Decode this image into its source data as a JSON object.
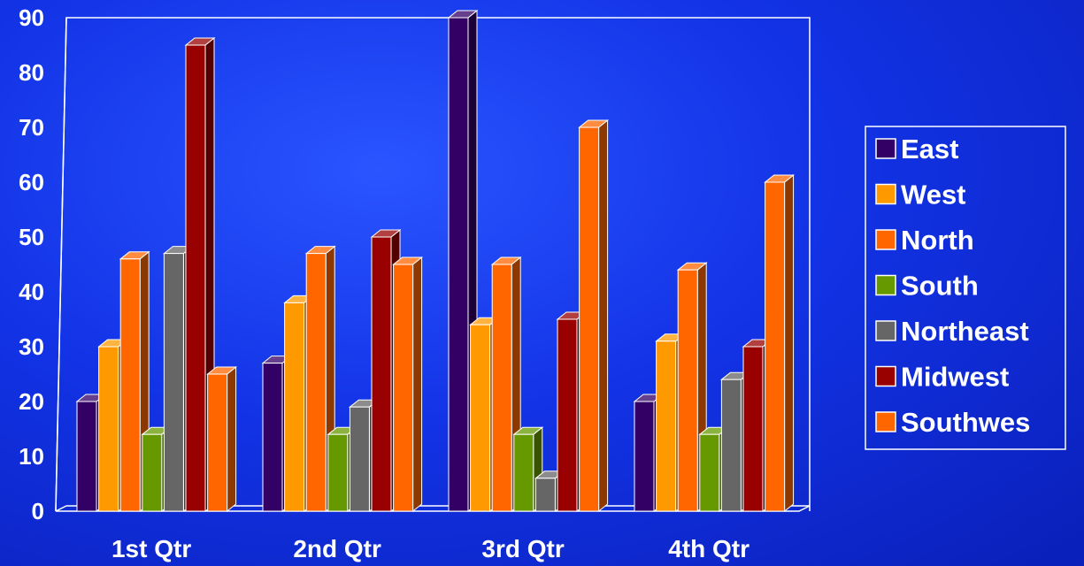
{
  "chart_data": {
    "type": "bar",
    "style": "3d-clustered-column",
    "title": "",
    "xlabel": "",
    "ylabel": "",
    "categories": [
      "1st Qtr",
      "2nd Qtr",
      "3rd Qtr",
      "4th Qtr"
    ],
    "ylim": [
      0,
      90
    ],
    "yticks": [
      0,
      10,
      20,
      30,
      40,
      50,
      60,
      70,
      80,
      90
    ],
    "grid": false,
    "legend_position": "right",
    "series": [
      {
        "name": "East",
        "color": "#330066",
        "values": [
          20,
          27,
          90,
          20
        ]
      },
      {
        "name": "West",
        "color": "#ff9900",
        "values": [
          30,
          38,
          34,
          31
        ]
      },
      {
        "name": "North",
        "color": "#ff6600",
        "values": [
          46,
          47,
          45,
          44
        ]
      },
      {
        "name": "South",
        "color": "#669900",
        "values": [
          14,
          14,
          14,
          14
        ]
      },
      {
        "name": "Northeast",
        "color": "#666666",
        "values": [
          47,
          19,
          6,
          24
        ]
      },
      {
        "name": "Midwest",
        "color": "#990000",
        "values": [
          85,
          50,
          35,
          30
        ]
      },
      {
        "name": "Southwes",
        "color": "#ff6600",
        "values": [
          25,
          45,
          70,
          60
        ]
      }
    ]
  }
}
